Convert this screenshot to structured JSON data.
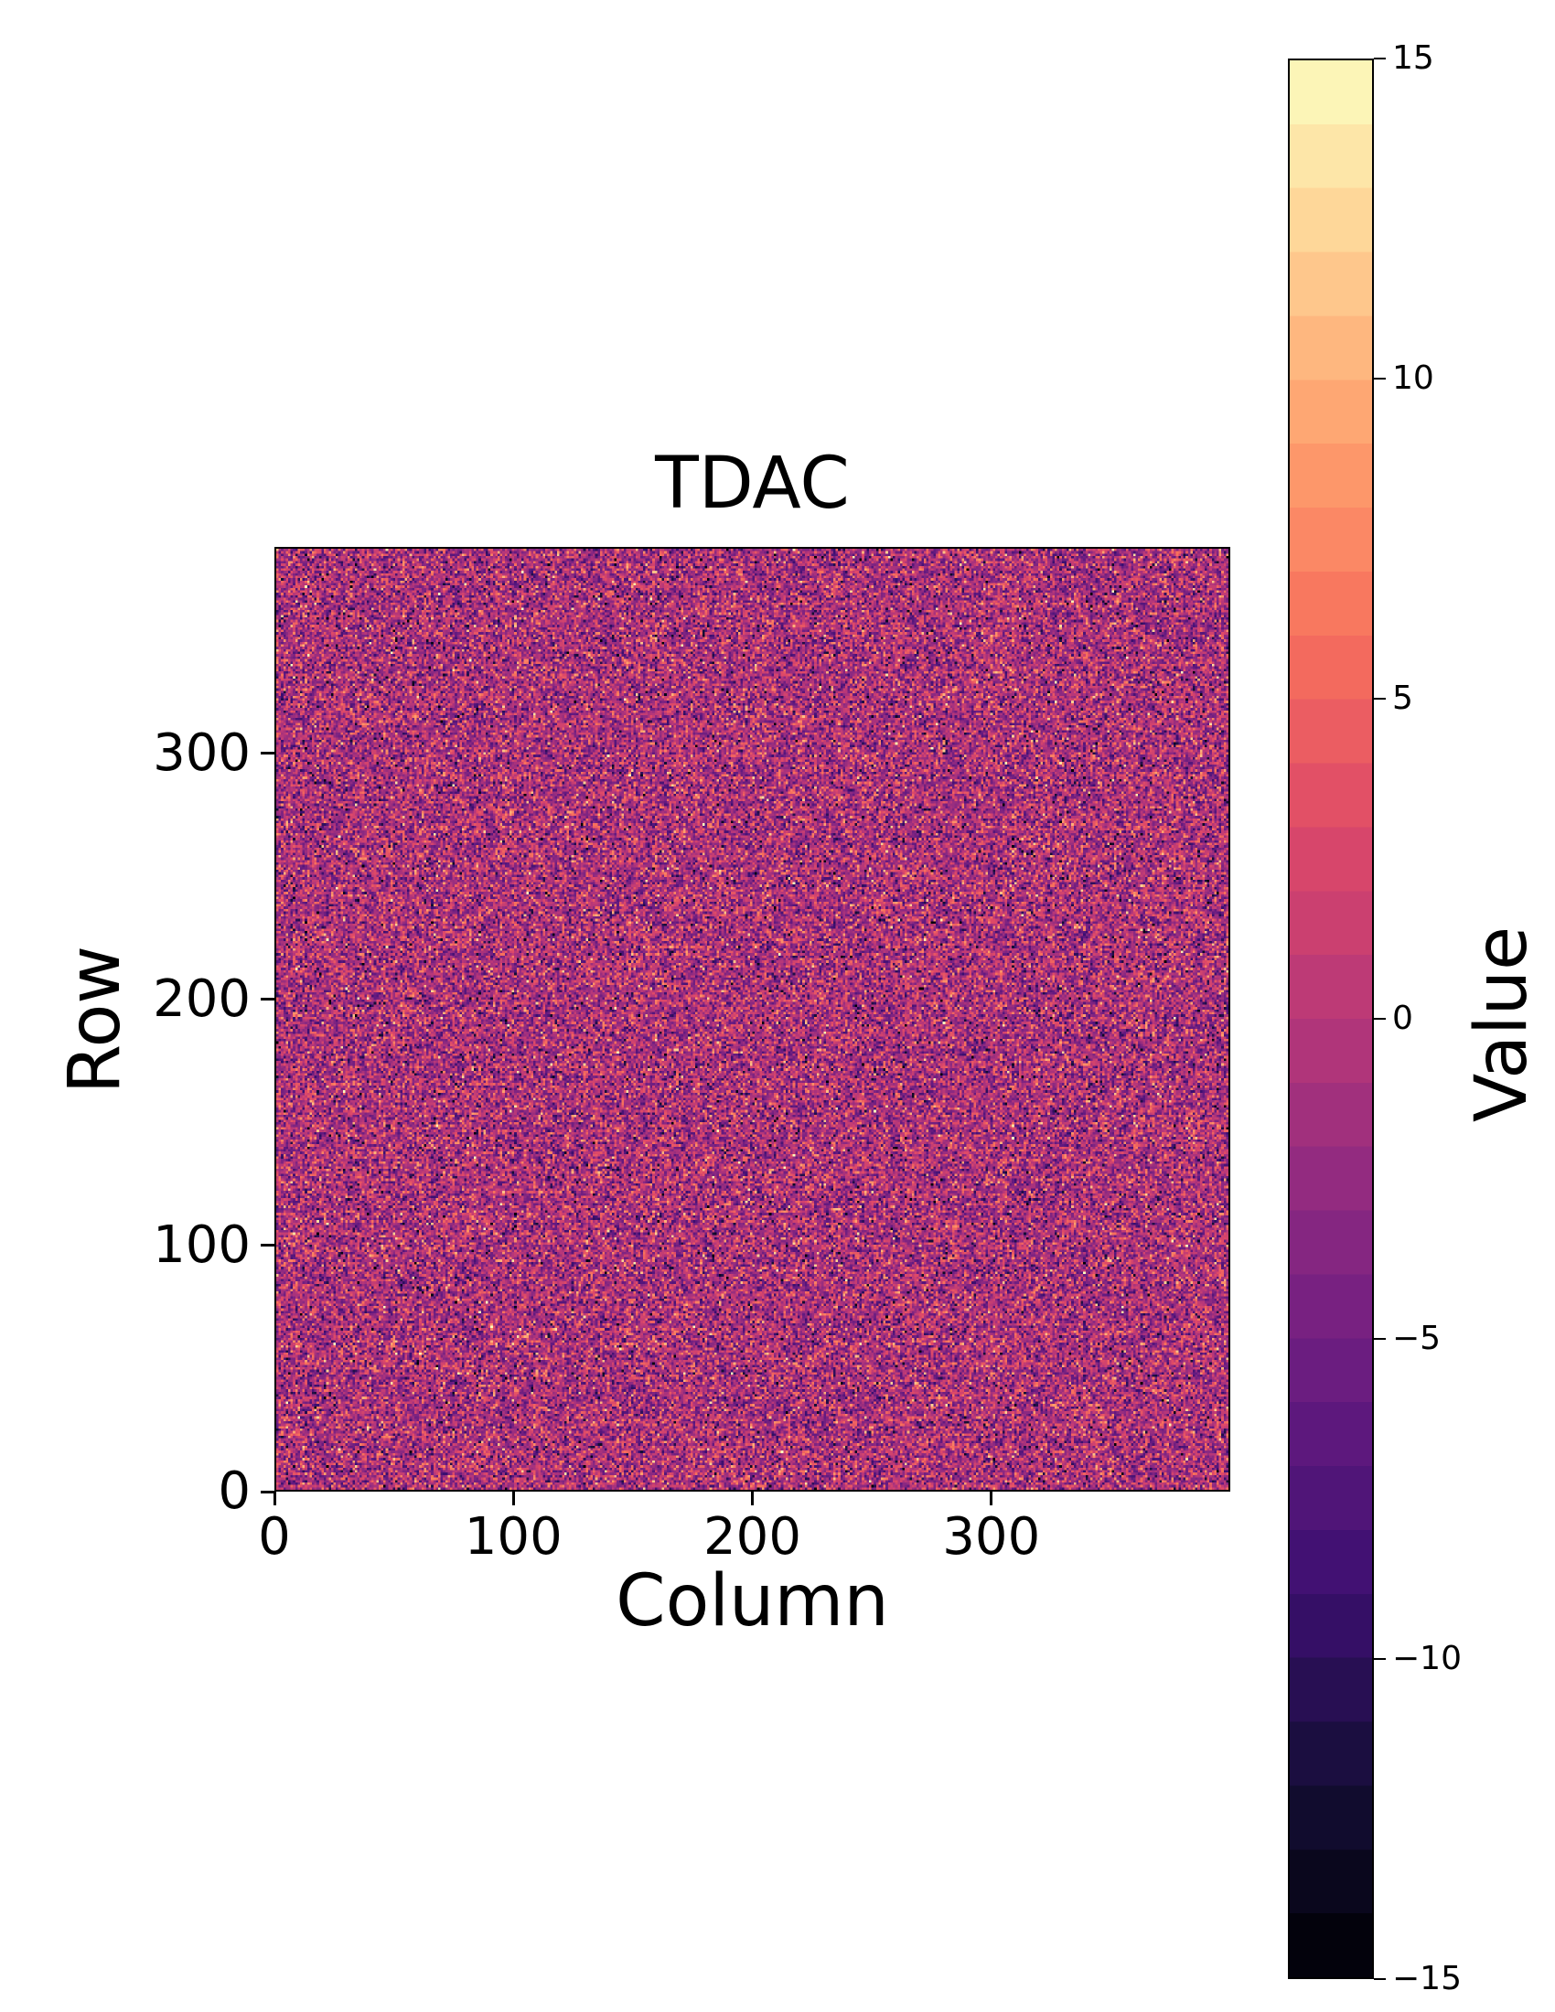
{
  "figure": {
    "background": "#ffffff",
    "text_color": "#000000"
  },
  "chart_data": {
    "type": "heatmap",
    "title": "TDAC",
    "xlabel": "Column",
    "ylabel": "Row",
    "colorbar_label": "Value",
    "grid": {
      "cols": 400,
      "rows": 384
    },
    "x_range": [
      0,
      400
    ],
    "y_range": [
      0,
      384
    ],
    "x_tick_values": [
      0,
      100,
      200,
      300
    ],
    "x_tick_labels": [
      "0",
      "100",
      "200",
      "300"
    ],
    "y_tick_values": [
      0,
      100,
      200,
      300
    ],
    "y_tick_labels": [
      "0",
      "100",
      "200",
      "300"
    ],
    "value_range": [
      -15,
      15
    ],
    "colorbar_tick_values": [
      15,
      10,
      5,
      0,
      -5,
      -10,
      -15
    ],
    "colorbar_tick_labels": [
      "15",
      "10",
      "5",
      "0",
      "−5",
      "−10",
      "−15"
    ],
    "colorbar_levels": 30,
    "legend": "none",
    "grid_lines": false,
    "noise": {
      "distribution": "gaussian",
      "mean": -1,
      "std": 4.5,
      "clip": [
        -15,
        15
      ],
      "quantize": "integer",
      "seed": 7
    },
    "colormap": {
      "name": "magma",
      "stops": [
        {
          "t": 0.0,
          "color": "#000004"
        },
        {
          "t": 0.1,
          "color": "#140e36"
        },
        {
          "t": 0.2,
          "color": "#3b0f70"
        },
        {
          "t": 0.3,
          "color": "#641a80"
        },
        {
          "t": 0.4,
          "color": "#8c2981"
        },
        {
          "t": 0.5,
          "color": "#b73779"
        },
        {
          "t": 0.6,
          "color": "#de4968"
        },
        {
          "t": 0.7,
          "color": "#f7705c"
        },
        {
          "t": 0.8,
          "color": "#fe9f6d"
        },
        {
          "t": 0.9,
          "color": "#fecf92"
        },
        {
          "t": 1.0,
          "color": "#fcfdbf"
        }
      ]
    }
  }
}
